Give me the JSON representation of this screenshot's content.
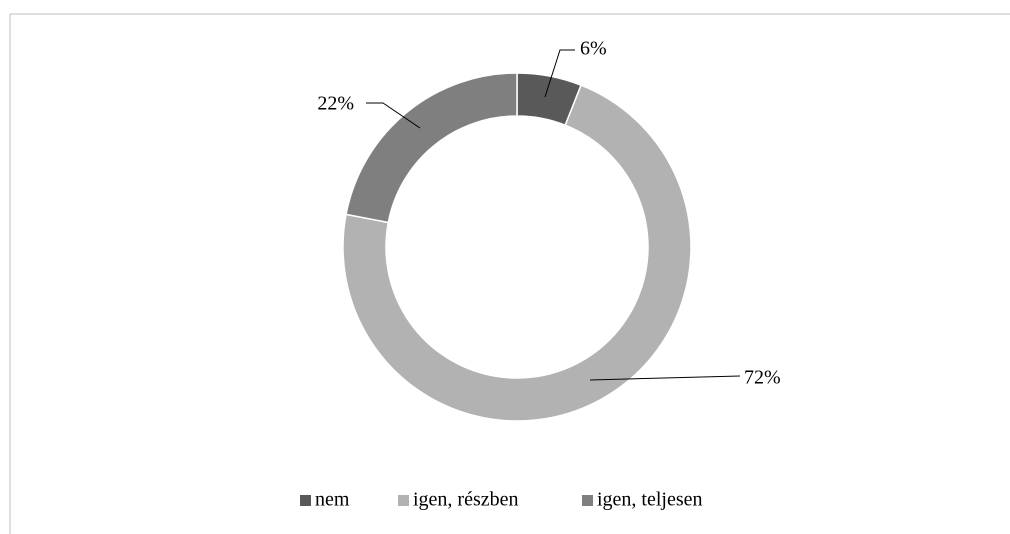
{
  "chart_data": {
    "type": "donut",
    "categories": [
      "nem",
      "igen, részben",
      "igen, teljesen"
    ],
    "values": [
      6,
      72,
      22
    ],
    "value_labels": [
      "6%",
      "72%",
      "22%"
    ],
    "colors": [
      "#595959",
      "#b2b2b2",
      "#7f7f7f"
    ]
  }
}
